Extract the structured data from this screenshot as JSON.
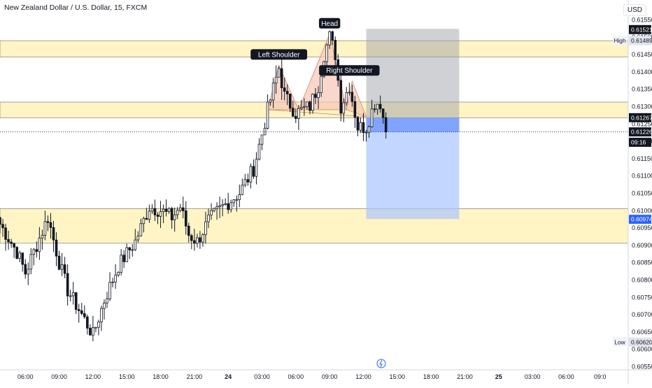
{
  "header": {
    "title": "New Zealand Dollar / U.S. Dollar, 15, FXCM",
    "currency": "USD"
  },
  "colors": {
    "up": "#131722",
    "down": "#131722",
    "zone": "#fff4c4",
    "zone_border": "#6a6d78",
    "pattern_fill": "#f7c6b4",
    "stop_zone": "#9598a1",
    "target_zone": "#a9c4ff",
    "entry_band": "#6f97ff",
    "price_line": "#131722",
    "label_bg": "#131722",
    "label_text": "#ffffff"
  },
  "chart_data": {
    "type": "candlestick",
    "title": "New Zealand Dollar / U.S. Dollar, 15, FXCM",
    "ylim": [
      0.6054,
      0.6157
    ],
    "y_ticks": [
      "0.60550",
      "0.60600",
      "0.60650",
      "0.60700",
      "0.60750",
      "0.60800",
      "0.60850",
      "0.60900",
      "0.60950",
      "0.61000",
      "0.61050",
      "0.61100",
      "0.61150",
      "0.61200",
      "0.61250",
      "0.61300",
      "0.61350",
      "0.61400",
      "0.61450",
      "0.61500",
      "0.61550"
    ],
    "x_ticks": [
      "06:00",
      "09:00",
      "12:00",
      "15:00",
      "18:00",
      "21:00",
      "24",
      "03:00",
      "06:00",
      "09:00",
      "12:00",
      "15:00",
      "18:00",
      "21:00",
      "25",
      "03:00",
      "06:00",
      "09:0"
    ],
    "x_tick_bars": [
      0,
      12,
      24,
      36,
      48,
      60,
      72,
      84,
      96,
      108,
      120,
      132,
      144,
      156,
      168,
      180,
      192,
      204
    ],
    "bar_range": [
      -9,
      214
    ],
    "key_points": [
      {
        "bar": -9,
        "price": 0.6096
      },
      {
        "bar": -3,
        "price": 0.6088
      },
      {
        "bar": 0,
        "price": 0.6082
      },
      {
        "bar": 5,
        "price": 0.6092
      },
      {
        "bar": 8,
        "price": 0.6098
      },
      {
        "bar": 12,
        "price": 0.6085
      },
      {
        "bar": 15,
        "price": 0.6077
      },
      {
        "bar": 20,
        "price": 0.607
      },
      {
        "bar": 24,
        "price": 0.6064
      },
      {
        "bar": 28,
        "price": 0.6074
      },
      {
        "bar": 33,
        "price": 0.6084
      },
      {
        "bar": 39,
        "price": 0.6091
      },
      {
        "bar": 40,
        "price": 0.6093
      },
      {
        "bar": 44,
        "price": 0.6101
      },
      {
        "bar": 48,
        "price": 0.61
      },
      {
        "bar": 52,
        "price": 0.6098
      },
      {
        "bar": 55,
        "price": 0.6101
      },
      {
        "bar": 58,
        "price": 0.6093
      },
      {
        "bar": 61,
        "price": 0.6091
      },
      {
        "bar": 65,
        "price": 0.6097
      },
      {
        "bar": 70,
        "price": 0.6101
      },
      {
        "bar": 76,
        "price": 0.6105
      },
      {
        "bar": 81,
        "price": 0.6112
      },
      {
        "bar": 84,
        "price": 0.6122
      },
      {
        "bar": 86,
        "price": 0.6129
      },
      {
        "bar": 88,
        "price": 0.6135
      },
      {
        "bar": 90,
        "price": 0.6141
      },
      {
        "bar": 92,
        "price": 0.6133
      },
      {
        "bar": 96,
        "price": 0.6128
      },
      {
        "bar": 101,
        "price": 0.613
      },
      {
        "bar": 104,
        "price": 0.6136
      },
      {
        "bar": 106,
        "price": 0.6145
      },
      {
        "bar": 108,
        "price": 0.615
      },
      {
        "bar": 110,
        "price": 0.6145
      },
      {
        "bar": 112,
        "price": 0.613
      },
      {
        "bar": 115,
        "price": 0.6136
      },
      {
        "bar": 118,
        "price": 0.6124
      },
      {
        "bar": 121,
        "price": 0.6124
      },
      {
        "bar": 124,
        "price": 0.6131
      },
      {
        "bar": 126,
        "price": 0.6131
      },
      {
        "bar": 128,
        "price": 0.61226
      }
    ],
    "zones": [
      {
        "from": 0.61442,
        "to": 0.61489
      },
      {
        "from": 0.61267,
        "to": 0.61312
      },
      {
        "from": 0.60905,
        "to": 0.61005
      }
    ],
    "pattern_labels": [
      {
        "text": "Left Shoulder",
        "bar": 90,
        "price": 0.61418
      },
      {
        "text": "Head",
        "bar": 108,
        "price": 0.61508
      },
      {
        "text": "Right Shoulder",
        "bar": 115,
        "price": 0.61372
      }
    ],
    "position": {
      "entry": 0.61267,
      "stop": 0.61523,
      "target": 0.60975,
      "bar_from": 121,
      "bar_to": 154
    },
    "price_tags": [
      {
        "text": "0.61521",
        "price": 0.61521,
        "kind": "dark"
      },
      {
        "text": "0.61489",
        "price": 0.61489,
        "kind": "light"
      },
      {
        "text": "0.61267",
        "price": 0.61267,
        "kind": "dark"
      },
      {
        "text": "0.61226",
        "price": 0.61226,
        "kind": "dark"
      },
      {
        "text": "09:16",
        "price": 0.61196,
        "kind": "dark"
      },
      {
        "text": "0.60974",
        "price": 0.60974,
        "kind": "blue"
      },
      {
        "text": "0.60620",
        "price": 0.6062,
        "kind": "light"
      }
    ],
    "side_labels": [
      {
        "text": "High",
        "price": 0.61489
      },
      {
        "text": "Low",
        "price": 0.6062
      }
    ],
    "last_price": 0.61226
  }
}
